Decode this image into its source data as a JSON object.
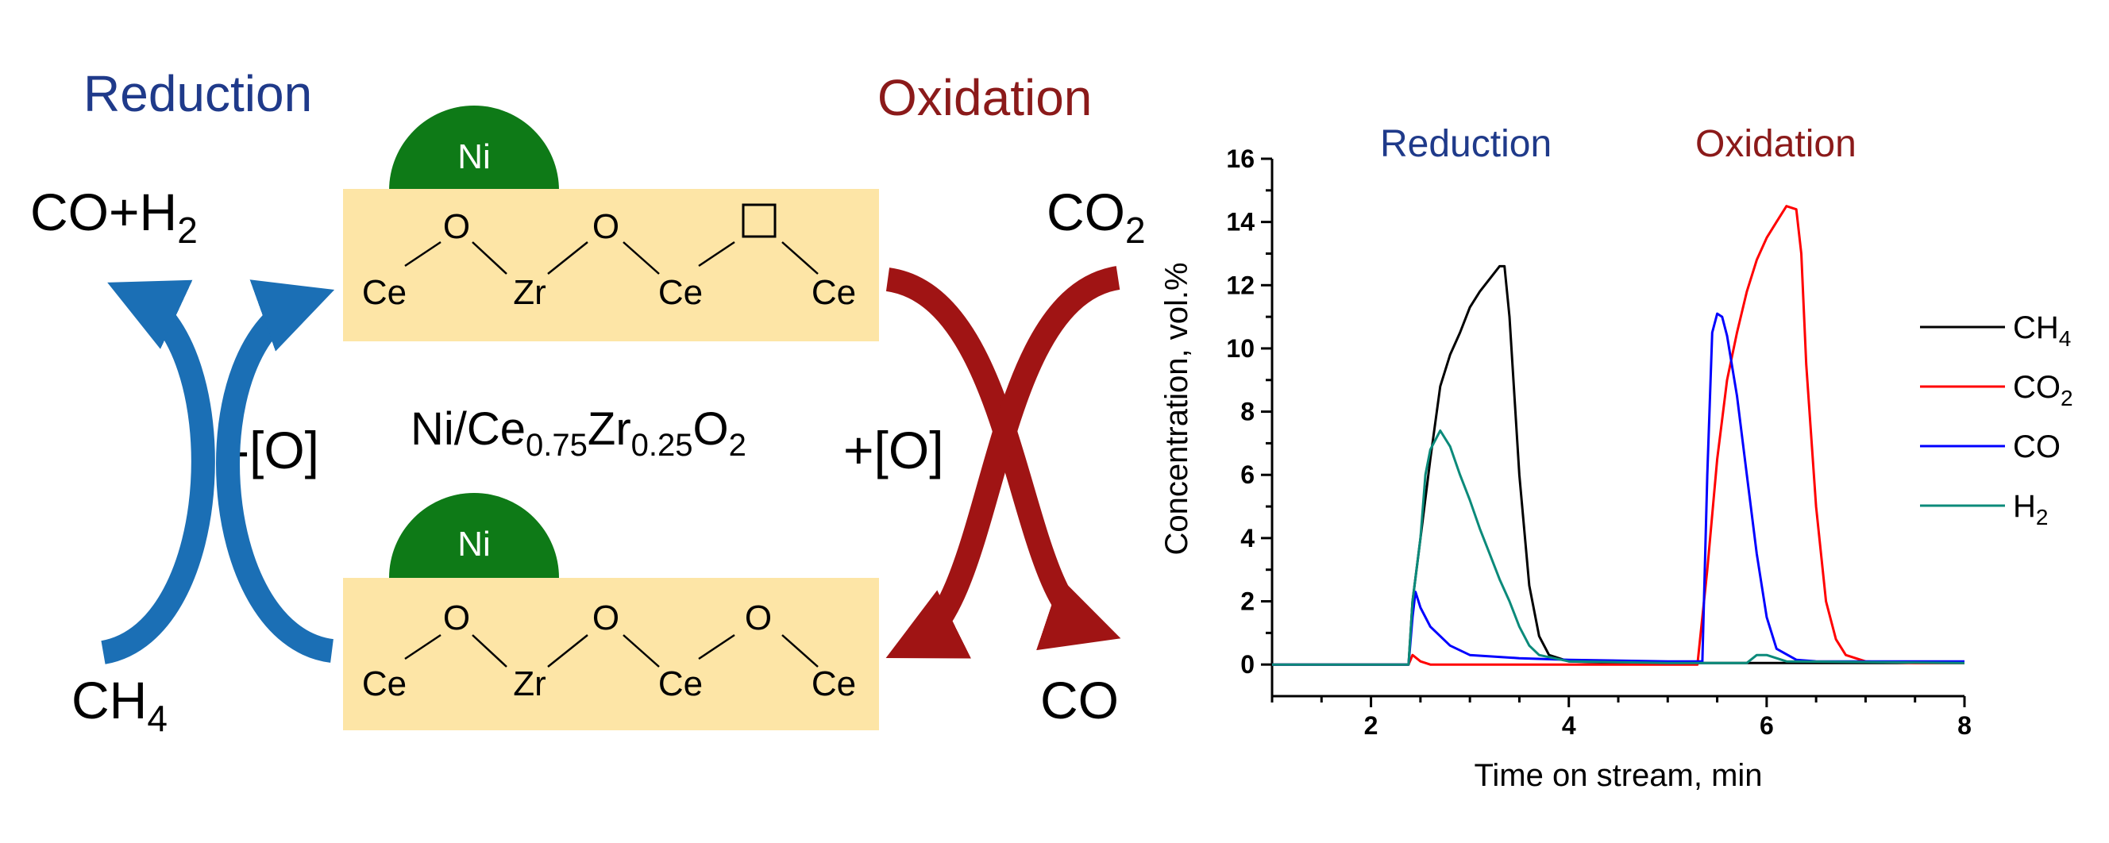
{
  "scheme": {
    "reduction_title": "Reduction",
    "oxidation_title": "Oxidation",
    "catalyst": {
      "main": "Ni/Ce",
      "s1": "0.75",
      "mid": "Zr",
      "s2": "0.25",
      "end": "O",
      "s3": "2"
    },
    "metal_label": "Ni",
    "top_atoms": [
      "Ce",
      "O",
      "Zr",
      "O",
      "Ce",
      "Ce"
    ],
    "bottom_atoms": [
      "Ce",
      "O",
      "Zr",
      "O",
      "Ce",
      "O",
      "Ce"
    ],
    "products_reduction": {
      "main": "CO+H",
      "sub": "2"
    },
    "reactant_reduction": {
      "main": "CH",
      "sub": "4"
    },
    "reactant_oxidation": {
      "main": "CO",
      "sub": "2"
    },
    "product_oxidation": "CO",
    "minus_o": "-[O]",
    "plus_o": "+[O]",
    "colors": {
      "reduction": "#1f3a8a",
      "oxidation": "#8b1a1a",
      "box": "#fde5a6",
      "nickel": "#0e7a17",
      "blue_arrow": "#1b6fb5",
      "red_arrow": "#a01414"
    }
  },
  "chart_data": {
    "type": "line",
    "xlabel": "Time on stream, min",
    "ylabel": "Concentration, vol.%",
    "xlim": [
      1,
      8
    ],
    "ylim": [
      -1,
      16
    ],
    "xticks": [
      2,
      4,
      6,
      8
    ],
    "yticks": [
      0,
      2,
      4,
      6,
      8,
      10,
      12,
      14,
      16
    ],
    "annotations": [
      {
        "text": "Reduction",
        "color": "#1f3a8a"
      },
      {
        "text": "Oxidation",
        "color": "#8b1a1a"
      }
    ],
    "legend_position": "right",
    "series": [
      {
        "name": "CH",
        "sub": "4",
        "color": "#000000",
        "x": [
          1.0,
          2.38,
          2.42,
          2.5,
          2.6,
          2.7,
          2.8,
          2.9,
          3.0,
          3.1,
          3.2,
          3.3,
          3.35,
          3.4,
          3.5,
          3.6,
          3.7,
          3.8,
          4.0,
          4.5,
          5.0,
          5.4,
          5.6,
          6.0,
          6.5,
          7.0,
          8.0
        ],
        "y": [
          0.0,
          0.0,
          2.0,
          4.0,
          6.5,
          8.8,
          9.8,
          10.5,
          11.3,
          11.8,
          12.2,
          12.6,
          12.6,
          11.0,
          6.0,
          2.5,
          0.9,
          0.3,
          0.1,
          0.05,
          0.05,
          0.05,
          0.05,
          0.05,
          0.05,
          0.05,
          0.05
        ]
      },
      {
        "name": "CO",
        "sub": "2",
        "color": "#ff0000",
        "x": [
          1.0,
          2.38,
          2.42,
          2.5,
          2.6,
          3.0,
          3.5,
          4.0,
          4.5,
          5.3,
          5.4,
          5.5,
          5.6,
          5.7,
          5.8,
          5.9,
          6.0,
          6.1,
          6.2,
          6.3,
          6.35,
          6.4,
          6.5,
          6.6,
          6.7,
          6.8,
          7.0,
          7.5,
          8.0
        ],
        "y": [
          0.0,
          0.0,
          0.3,
          0.1,
          0.0,
          0.0,
          0.0,
          0.0,
          0.0,
          0.0,
          3.0,
          6.5,
          9.0,
          10.5,
          11.8,
          12.8,
          13.5,
          14.0,
          14.5,
          14.4,
          13.0,
          9.5,
          5.0,
          2.0,
          0.8,
          0.3,
          0.1,
          0.05,
          0.05
        ]
      },
      {
        "name": "CO",
        "sub": "",
        "color": "#0000ff",
        "x": [
          1.0,
          2.38,
          2.42,
          2.45,
          2.5,
          2.6,
          2.8,
          3.0,
          3.5,
          4.0,
          5.0,
          5.35,
          5.4,
          5.45,
          5.5,
          5.55,
          5.6,
          5.7,
          5.8,
          5.9,
          6.0,
          6.1,
          6.3,
          6.5,
          7.0,
          8.0
        ],
        "y": [
          0.0,
          0.0,
          1.5,
          2.3,
          1.8,
          1.2,
          0.6,
          0.3,
          0.2,
          0.15,
          0.1,
          0.1,
          6.0,
          10.5,
          11.1,
          11.0,
          10.4,
          8.5,
          6.0,
          3.5,
          1.5,
          0.5,
          0.15,
          0.1,
          0.1,
          0.1
        ]
      },
      {
        "name": "H",
        "sub": "2",
        "color": "#0b8a7a",
        "x": [
          1.0,
          2.38,
          2.42,
          2.5,
          2.55,
          2.6,
          2.7,
          2.8,
          2.9,
          3.0,
          3.1,
          3.2,
          3.3,
          3.4,
          3.5,
          3.6,
          3.7,
          4.0,
          5.0,
          5.4,
          5.8,
          5.9,
          6.0,
          6.2,
          8.0
        ],
        "y": [
          0.0,
          0.0,
          2.0,
          4.0,
          6.0,
          6.8,
          7.4,
          6.9,
          6.0,
          5.2,
          4.3,
          3.5,
          2.7,
          2.0,
          1.2,
          0.6,
          0.3,
          0.1,
          0.05,
          0.05,
          0.05,
          0.3,
          0.3,
          0.1,
          0.05
        ]
      }
    ]
  }
}
